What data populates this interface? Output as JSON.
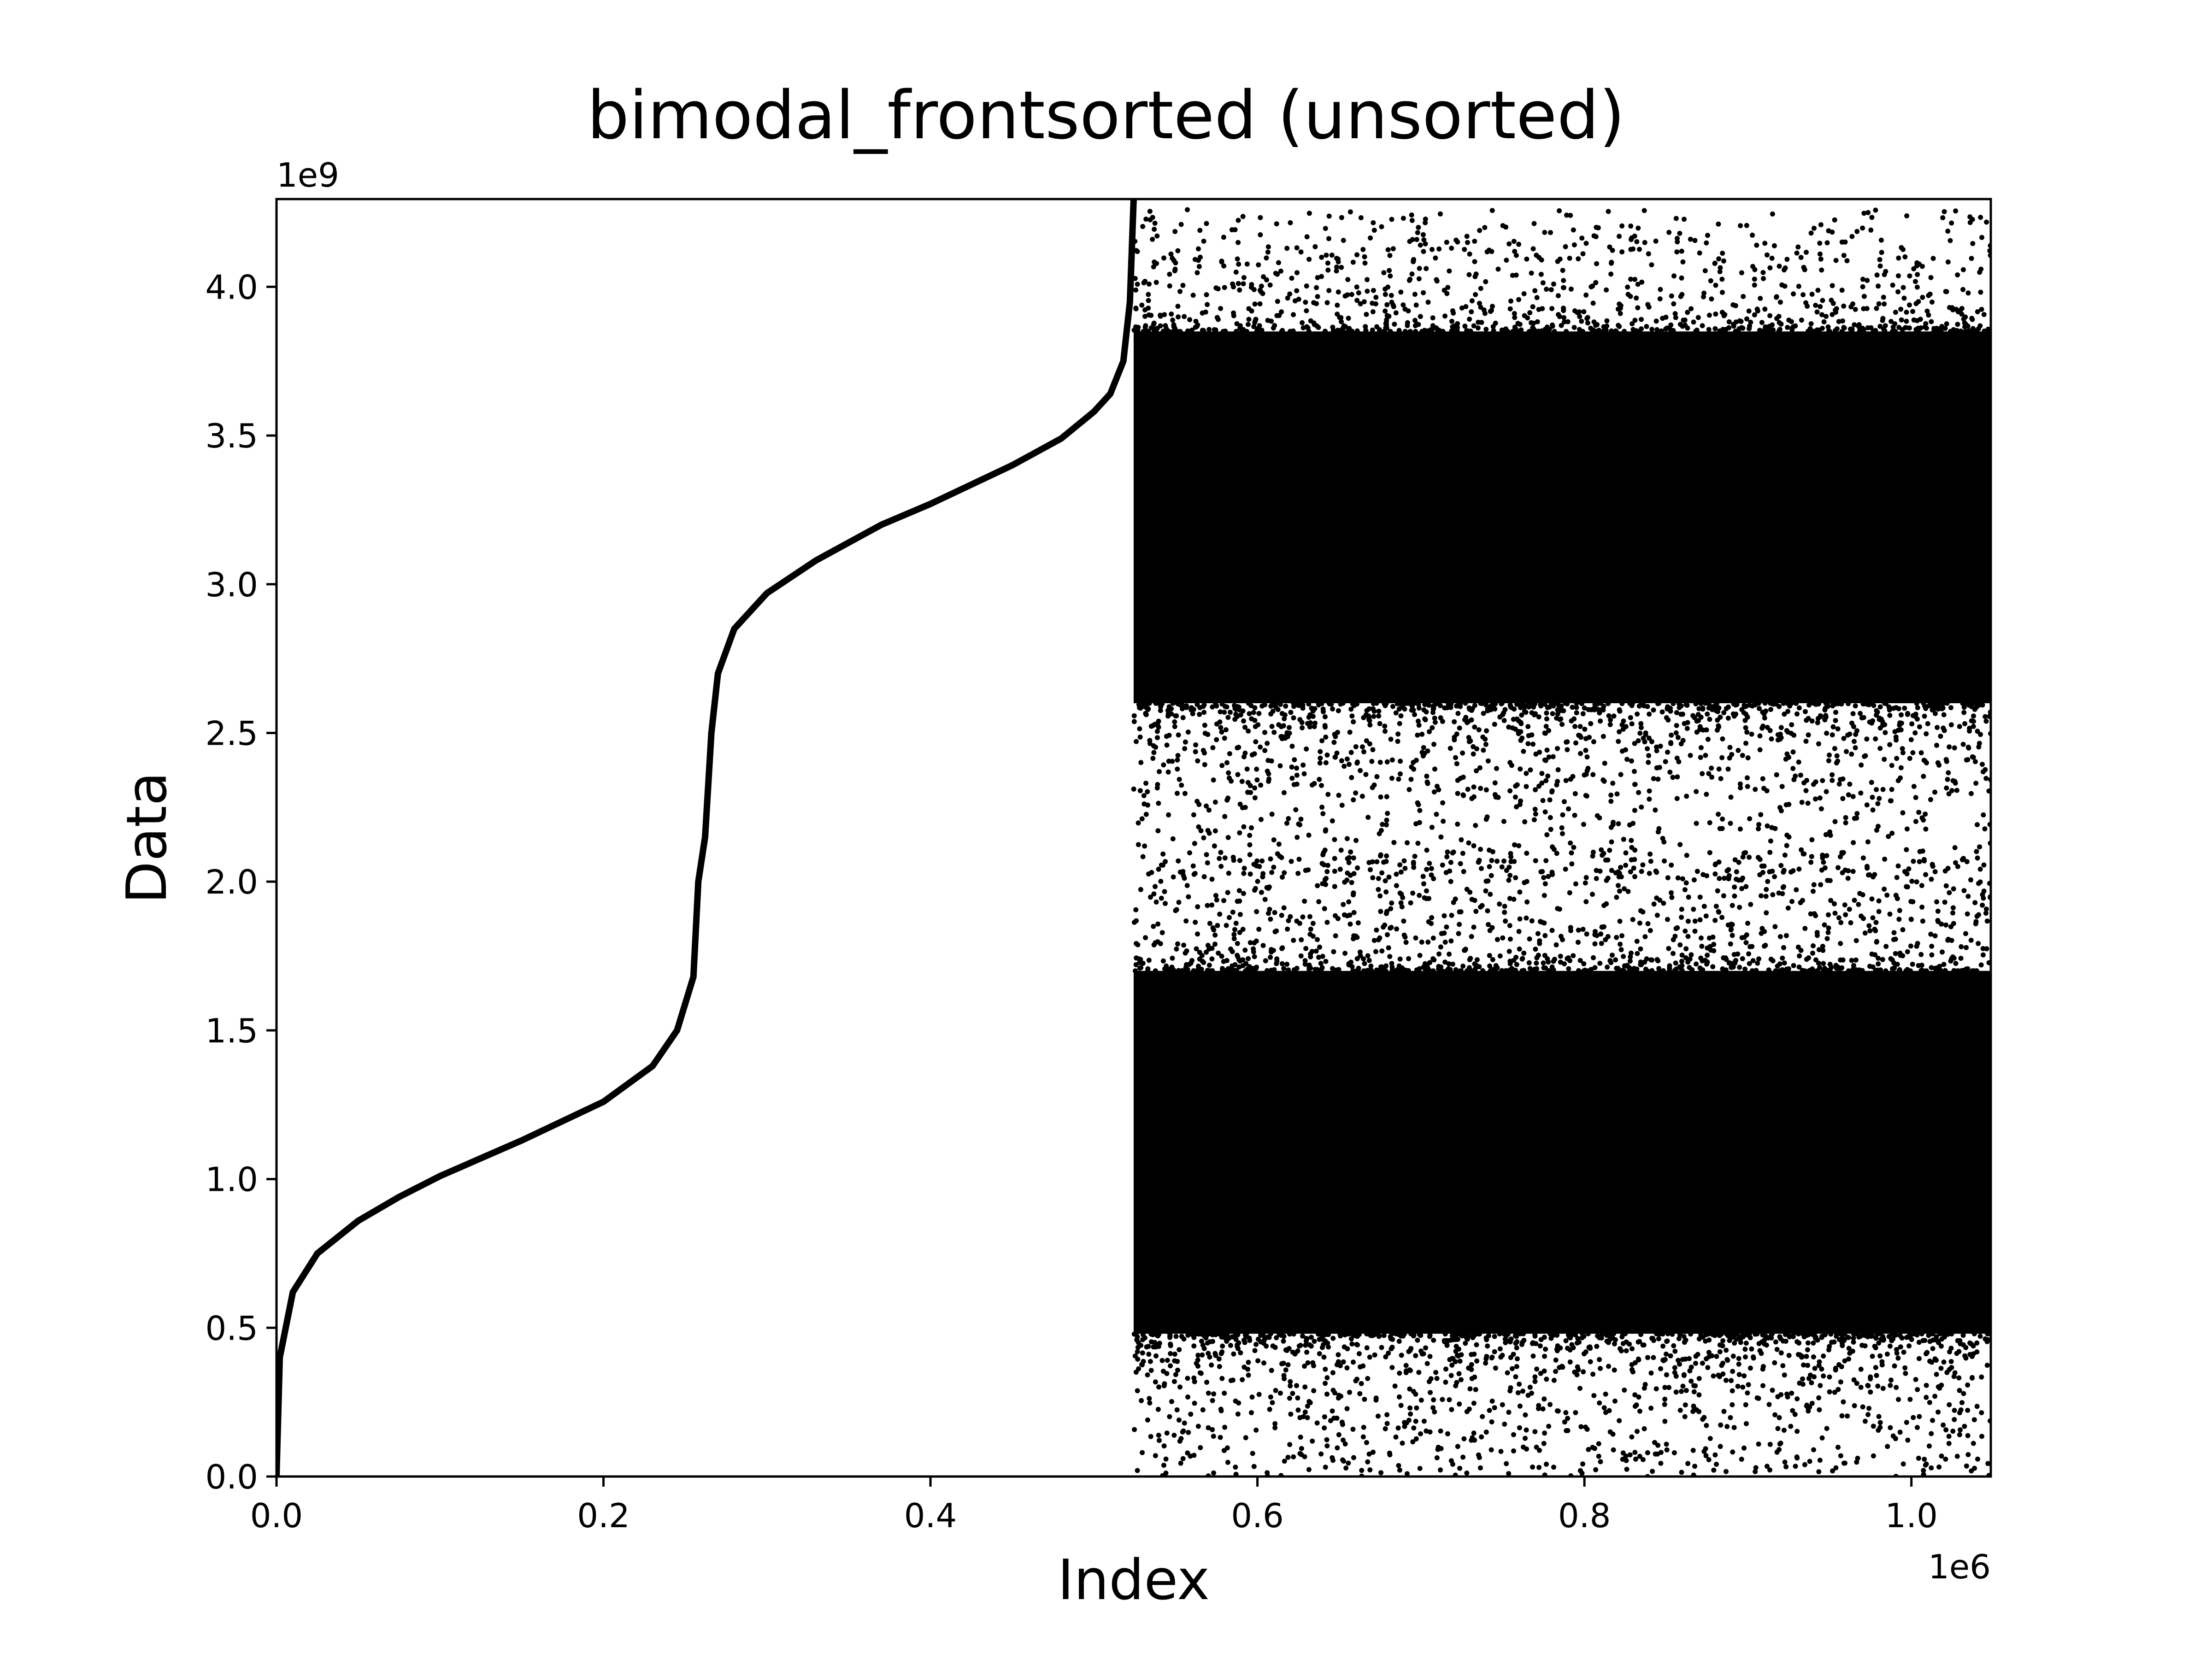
{
  "chart_data": {
    "type": "scatter",
    "title": "bimodal_frontsorted (unsorted)",
    "xlabel": "Index",
    "ylabel": "Data",
    "x_offset_label": "1e6",
    "y_offset_label": "1e9",
    "x_scale": 1000000,
    "y_scale": 1000000000,
    "xlim": [
      0,
      1048576
    ],
    "ylim": [
      0,
      4294967295
    ],
    "x_ticks": [
      0.0,
      0.2,
      0.4,
      0.6,
      0.8,
      1.0
    ],
    "x_tick_labels": [
      "0.0",
      "0.2",
      "0.4",
      "0.6",
      "0.8",
      "1.0"
    ],
    "y_ticks": [
      0.0,
      0.5,
      1.0,
      1.5,
      2.0,
      2.5,
      3.0,
      3.5,
      4.0
    ],
    "y_tick_labels": [
      "0.0",
      "0.5",
      "1.0",
      "1.5",
      "2.0",
      "2.5",
      "3.0",
      "3.5",
      "4.0"
    ],
    "grid": false,
    "legend": "none",
    "marker_color": "#000000",
    "series": [
      {
        "segment": "sorted front half",
        "style": "line",
        "x": [
          0,
          2000,
          10000,
          25000,
          50000,
          75000,
          100000,
          150000,
          200000,
          230000,
          245000,
          255000,
          258000,
          262144,
          266000,
          270000,
          280000,
          300000,
          330000,
          370000,
          400000,
          450000,
          480000,
          500000,
          510000,
          518000,
          522000,
          524288
        ],
        "y": [
          0,
          400000000,
          620000000,
          750000000,
          860000000,
          940000000,
          1010000000,
          1130000000,
          1260000000,
          1380000000,
          1500000000,
          1680000000,
          2000000000,
          2150000000,
          2500000000,
          2700000000,
          2850000000,
          2970000000,
          3080000000,
          3200000000,
          3270000000,
          3400000000,
          3490000000,
          3580000000,
          3640000000,
          3750000000,
          3950000000,
          4294967295
        ]
      },
      {
        "segment": "unsorted back half",
        "style": "scatter",
        "x_range": [
          524288,
          1048576
        ],
        "modes": [
          {
            "dense_band": [
              480000000,
              1700000000
            ],
            "outlier_range": [
              0,
              2100000000
            ]
          },
          {
            "dense_band": [
              2600000000,
              3850000000
            ],
            "outlier_range": [
              2000000000,
              4260000000
            ]
          }
        ]
      }
    ]
  }
}
